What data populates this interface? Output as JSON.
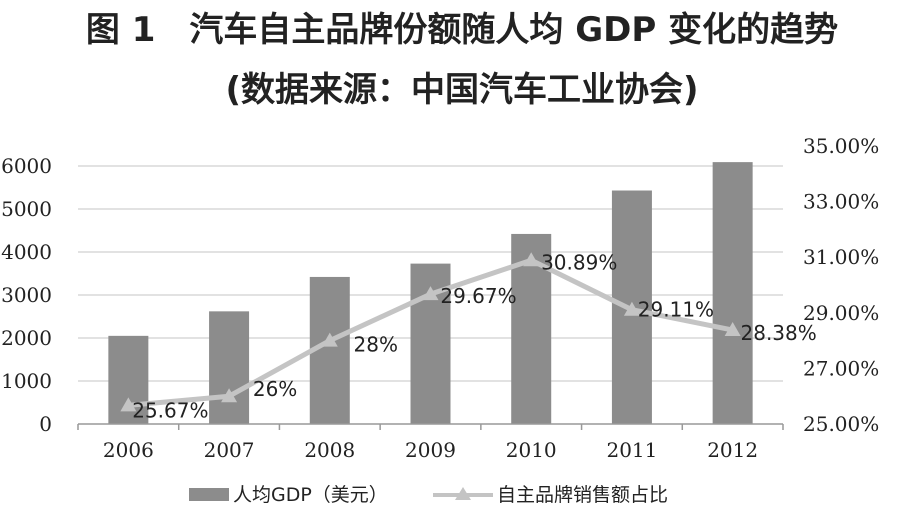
{
  "title": "图 1　汽车自主品牌份额随人均 GDP 变化的趋势",
  "subtitle": "(数据来源：中国汽车工业协会)",
  "chart_data": {
    "type": "bar+line",
    "categories": [
      "2006",
      "2007",
      "2008",
      "2009",
      "2010",
      "2011",
      "2012"
    ],
    "series": [
      {
        "name": "人均GDP（美元）",
        "type": "bar",
        "axis": "left",
        "values": [
          2050,
          2620,
          3420,
          3730,
          4420,
          5430,
          6090
        ]
      },
      {
        "name": "自主品牌销售额占比",
        "type": "line",
        "axis": "right",
        "values": [
          25.67,
          26,
          28,
          29.67,
          30.89,
          29.11,
          28.38
        ],
        "labels": [
          "25.67%",
          "26%",
          "28%",
          "29.67%",
          "30.89%",
          "29.11%",
          "28.38%"
        ]
      }
    ],
    "left_axis": {
      "range": [
        0,
        6000
      ],
      "ticks": [
        0,
        1000,
        2000,
        3000,
        4000,
        5000,
        6000
      ],
      "tick_labels": [
        "0",
        "1000",
        "2000",
        "3000",
        "4000",
        "5000",
        "6000"
      ]
    },
    "right_axis": {
      "range": [
        25,
        35
      ],
      "ticks": [
        25,
        27,
        29,
        31,
        33,
        35
      ],
      "tick_labels": [
        "25.00%",
        "27.00%",
        "29.00%",
        "31.00%",
        "33.00%",
        "35.00%"
      ]
    },
    "grid": true,
    "legend_position": "bottom",
    "colors": {
      "bar": "#8c8c8c",
      "line": "#c4c4c4",
      "grid": "#d9d9d9",
      "axis": "#999999"
    }
  }
}
